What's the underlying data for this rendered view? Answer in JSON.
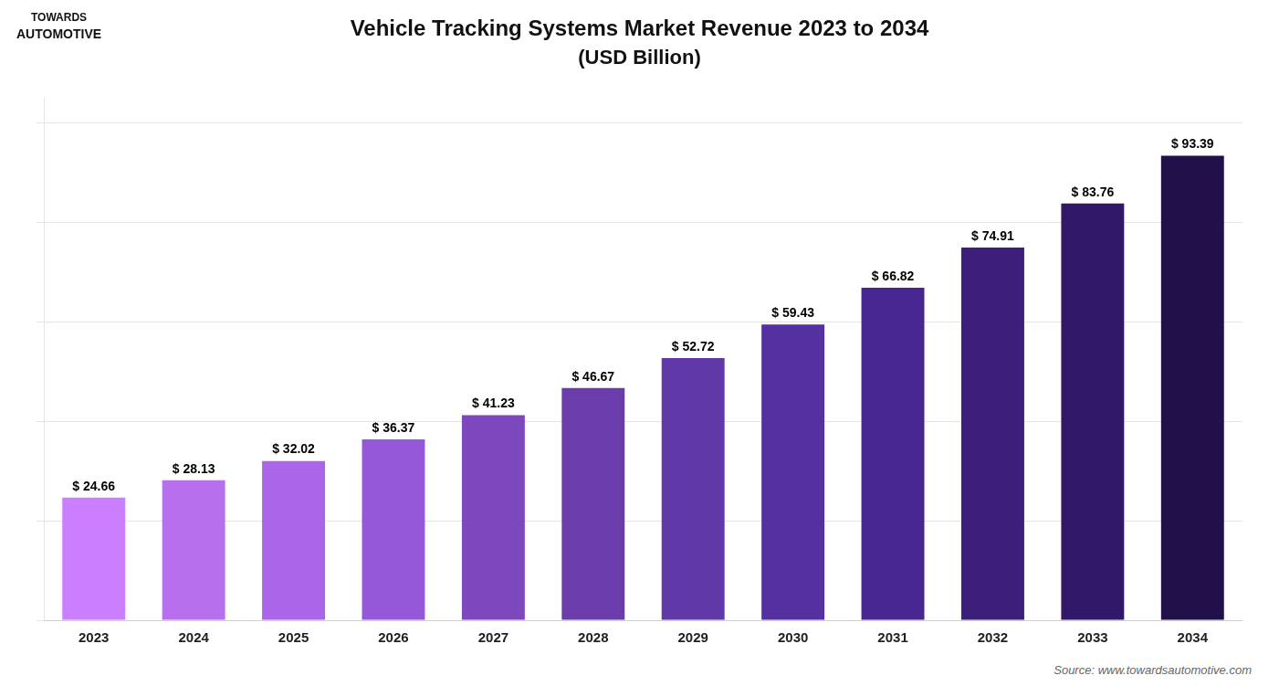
{
  "chart_data": {
    "type": "bar",
    "title": "Vehicle Tracking Systems Market Revenue 2023 to 2034",
    "subtitle": "(USD Billion)",
    "categories": [
      "2023",
      "2024",
      "2025",
      "2026",
      "2027",
      "2028",
      "2029",
      "2030",
      "2031",
      "2032",
      "2033",
      "2034"
    ],
    "values": [
      24.66,
      28.13,
      32.02,
      36.37,
      41.23,
      46.67,
      52.72,
      59.43,
      66.82,
      74.91,
      83.76,
      93.39
    ],
    "value_labels": [
      "$ 24.66",
      "$ 28.13",
      "$ 32.02",
      "$ 36.37",
      "$ 41.23",
      "$ 46.67",
      "$ 52.72",
      "$ 59.43",
      "$ 66.82",
      "$ 74.91",
      "$ 83.76",
      "$ 93.39"
    ],
    "colors": [
      "#C97FFF",
      "#B86FEE",
      "#AB65E8",
      "#9558D8",
      "#7D48BE",
      "#6B3DAB",
      "#6038A8",
      "#5530A0",
      "#472690",
      "#3C1F7A",
      "#321868",
      "#22104A"
    ],
    "ylim": [
      0,
      105
    ],
    "yticks": [
      0,
      20,
      40,
      60,
      80,
      100
    ],
    "grid": true,
    "data_labels": true,
    "tick_labels": "x",
    "annotations": [
      "TOWARDS",
      "AUTOMOTIVE",
      "Source: www.towardsautomotive.com"
    ]
  }
}
